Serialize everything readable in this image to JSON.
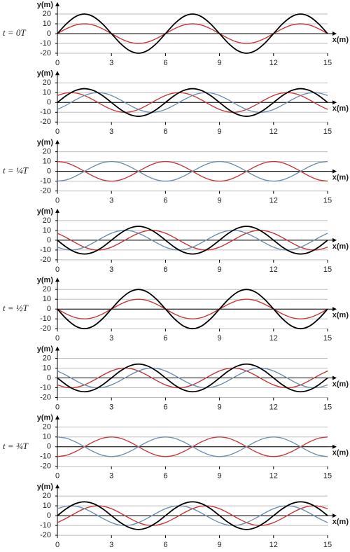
{
  "chart_data": [
    {
      "type": "line",
      "annotation": "t = 0T",
      "ylabel": "y(m)",
      "xlabel": "x(m)",
      "xlim": [
        0,
        15
      ],
      "ylim": [
        -20,
        20
      ],
      "xticks": [
        0,
        3,
        6,
        9,
        12,
        15
      ],
      "yticks": [
        -20,
        -10,
        0,
        10,
        20
      ],
      "grid": true,
      "x": [
        0,
        0.5,
        1,
        1.5,
        2,
        2.5,
        3,
        3.5,
        4,
        4.5,
        5,
        5.5,
        6,
        6.5,
        7,
        7.5,
        8,
        8.5,
        9,
        9.5,
        10,
        10.5,
        11,
        11.5,
        12,
        12.5,
        13,
        13.5,
        14,
        14.5,
        15
      ],
      "series": [
        {
          "color": "#c8383a",
          "values": [
            0,
            5,
            8.7,
            10,
            8.7,
            5,
            0,
            -5,
            -8.7,
            -10,
            -8.7,
            -5,
            0,
            5,
            8.7,
            10,
            8.7,
            5,
            0,
            -5,
            -8.7,
            -10,
            -8.7,
            -5,
            0,
            5,
            8.7,
            10,
            8.7,
            5,
            0
          ]
        },
        {
          "color": "#000000",
          "values": [
            0,
            10,
            17.3,
            20,
            17.3,
            10,
            0,
            -10,
            -17.3,
            -20,
            -17.3,
            -10,
            0,
            10,
            17.3,
            20,
            17.3,
            10,
            0,
            -10,
            -17.3,
            -20,
            -17.3,
            -10,
            0,
            10,
            17.3,
            20,
            17.3,
            10,
            0
          ]
        }
      ]
    },
    {
      "type": "line",
      "ylabel": "y(m)",
      "xlabel": "x(m)",
      "xlim": [
        0,
        15
      ],
      "ylim": [
        -20,
        20
      ],
      "xticks": [
        0,
        3,
        6,
        9,
        12,
        15
      ],
      "yticks": [
        -20,
        -10,
        0,
        10,
        20
      ],
      "grid": true,
      "x": [
        0,
        0.5,
        1,
        1.5,
        2,
        2.5,
        3,
        3.5,
        4,
        4.5,
        5,
        5.5,
        6,
        6.5,
        7,
        7.5,
        8,
        8.5,
        9,
        9.5,
        10,
        10.5,
        11,
        11.5,
        12,
        12.5,
        13,
        13.5,
        14,
        14.5,
        15
      ],
      "series": [
        {
          "color": "#c8383a",
          "values": [
            7.1,
            9.7,
            9.7,
            7.1,
            2.6,
            -2.6,
            -7.1,
            -9.7,
            -9.7,
            -7.1,
            -2.6,
            2.6,
            7.1,
            9.7,
            9.7,
            7.1,
            2.6,
            -2.6,
            -7.1,
            -9.7,
            -9.7,
            -7.1,
            -2.6,
            2.6,
            7.1,
            9.7,
            9.7,
            7.1,
            2.6,
            -2.6,
            -7.1
          ]
        },
        {
          "color": "#6f8fb0",
          "values": [
            -7.1,
            -2.6,
            2.6,
            7.1,
            9.7,
            9.7,
            7.1,
            2.6,
            -2.6,
            -7.1,
            -9.7,
            -9.7,
            -7.1,
            -2.6,
            2.6,
            7.1,
            9.7,
            9.7,
            7.1,
            2.6,
            -2.6,
            -7.1,
            -9.7,
            -9.7,
            -7.1,
            -2.6,
            2.6,
            7.1,
            9.7,
            9.7,
            7.1
          ]
        },
        {
          "color": "#000000",
          "values": [
            0,
            7.1,
            12.2,
            14.1,
            12.2,
            7.1,
            0,
            -7.1,
            -12.2,
            -14.1,
            -12.2,
            -7.1,
            0,
            7.1,
            12.2,
            14.1,
            12.2,
            7.1,
            0,
            -7.1,
            -12.2,
            -14.1,
            -12.2,
            -7.1,
            0,
            7.1,
            12.2,
            14.1,
            12.2,
            7.1,
            0
          ]
        }
      ]
    },
    {
      "type": "line",
      "annotation": "t = ¼T",
      "ylabel": "y(m)",
      "xlabel": "x(m)",
      "xlim": [
        0,
        15
      ],
      "ylim": [
        -20,
        20
      ],
      "xticks": [
        0,
        3,
        6,
        9,
        12,
        15
      ],
      "yticks": [
        -20,
        -10,
        0,
        10,
        20
      ],
      "grid": true,
      "x": [
        0,
        0.5,
        1,
        1.5,
        2,
        2.5,
        3,
        3.5,
        4,
        4.5,
        5,
        5.5,
        6,
        6.5,
        7,
        7.5,
        8,
        8.5,
        9,
        9.5,
        10,
        10.5,
        11,
        11.5,
        12,
        12.5,
        13,
        13.5,
        14,
        14.5,
        15
      ],
      "series": [
        {
          "color": "#c8383a",
          "values": [
            10,
            8.7,
            5,
            0,
            -5,
            -8.7,
            -10,
            -8.7,
            -5,
            0,
            5,
            8.7,
            10,
            8.7,
            5,
            0,
            -5,
            -8.7,
            -10,
            -8.7,
            -5,
            0,
            5,
            8.7,
            10,
            8.7,
            5,
            0,
            -5,
            -8.7,
            -10
          ]
        },
        {
          "color": "#6f8fb0",
          "values": [
            -10,
            -8.7,
            -5,
            0,
            5,
            8.7,
            10,
            8.7,
            5,
            0,
            -5,
            -8.7,
            -10,
            -8.7,
            -5,
            0,
            5,
            8.7,
            10,
            8.7,
            5,
            0,
            -5,
            -8.7,
            -10,
            -8.7,
            -5,
            0,
            5,
            8.7,
            10
          ]
        }
      ]
    },
    {
      "type": "line",
      "ylabel": "y(m)",
      "xlabel": "x(m)",
      "xlim": [
        0,
        15
      ],
      "ylim": [
        -20,
        20
      ],
      "xticks": [
        0,
        3,
        6,
        9,
        12,
        15
      ],
      "yticks": [
        -20,
        -10,
        0,
        10,
        20
      ],
      "grid": true,
      "x": [
        0,
        0.5,
        1,
        1.5,
        2,
        2.5,
        3,
        3.5,
        4,
        4.5,
        5,
        5.5,
        6,
        6.5,
        7,
        7.5,
        8,
        8.5,
        9,
        9.5,
        10,
        10.5,
        11,
        11.5,
        12,
        12.5,
        13,
        13.5,
        14,
        14.5,
        15
      ],
      "series": [
        {
          "color": "#c8383a",
          "values": [
            7.1,
            2.6,
            -2.6,
            -7.1,
            -9.7,
            -9.7,
            -7.1,
            -2.6,
            2.6,
            7.1,
            9.7,
            9.7,
            7.1,
            2.6,
            -2.6,
            -7.1,
            -9.7,
            -9.7,
            -7.1,
            -2.6,
            2.6,
            7.1,
            9.7,
            9.7,
            7.1,
            2.6,
            -2.6,
            -7.1,
            -9.7,
            -9.7,
            -7.1
          ]
        },
        {
          "color": "#6f8fb0",
          "values": [
            -7.1,
            -9.7,
            -9.7,
            -7.1,
            -2.6,
            2.6,
            7.1,
            9.7,
            9.7,
            7.1,
            2.6,
            -2.6,
            -7.1,
            -9.7,
            -9.7,
            -7.1,
            -2.6,
            2.6,
            7.1,
            9.7,
            9.7,
            7.1,
            2.6,
            -2.6,
            -7.1,
            -9.7,
            -9.7,
            -7.1,
            -2.6,
            2.6,
            7.1
          ]
        },
        {
          "color": "#000000",
          "values": [
            0,
            -7.1,
            -12.2,
            -14.1,
            -12.2,
            -7.1,
            0,
            7.1,
            12.2,
            14.1,
            12.2,
            7.1,
            0,
            -7.1,
            -12.2,
            -14.1,
            -12.2,
            -7.1,
            0,
            7.1,
            12.2,
            14.1,
            12.2,
            7.1,
            0,
            -7.1,
            -12.2,
            -14.1,
            -12.2,
            -7.1,
            0
          ]
        }
      ]
    },
    {
      "type": "line",
      "annotation": "t = ½T",
      "ylabel": "y(m)",
      "xlabel": "x(m)",
      "xlim": [
        0,
        15
      ],
      "ylim": [
        -20,
        20
      ],
      "xticks": [
        0,
        3,
        6,
        9,
        12,
        15
      ],
      "yticks": [
        -20,
        -10,
        0,
        10,
        20
      ],
      "grid": true,
      "x": [
        0,
        0.5,
        1,
        1.5,
        2,
        2.5,
        3,
        3.5,
        4,
        4.5,
        5,
        5.5,
        6,
        6.5,
        7,
        7.5,
        8,
        8.5,
        9,
        9.5,
        10,
        10.5,
        11,
        11.5,
        12,
        12.5,
        13,
        13.5,
        14,
        14.5,
        15
      ],
      "series": [
        {
          "color": "#c8383a",
          "values": [
            0,
            -5,
            -8.7,
            -10,
            -8.7,
            -5,
            0,
            5,
            8.7,
            10,
            8.7,
            5,
            0,
            -5,
            -8.7,
            -10,
            -8.7,
            -5,
            0,
            5,
            8.7,
            10,
            8.7,
            5,
            0,
            -5,
            -8.7,
            -10,
            -8.7,
            -5,
            0
          ]
        },
        {
          "color": "#000000",
          "values": [
            0,
            -10,
            -17.3,
            -20,
            -17.3,
            -10,
            0,
            10,
            17.3,
            20,
            17.3,
            10,
            0,
            -10,
            -17.3,
            -20,
            -17.3,
            -10,
            0,
            10,
            17.3,
            20,
            17.3,
            10,
            0,
            -10,
            -17.3,
            -20,
            -17.3,
            -10,
            0
          ]
        }
      ]
    },
    {
      "type": "line",
      "ylabel": "y(m)",
      "xlabel": "x(m)",
      "xlim": [
        0,
        15
      ],
      "ylim": [
        -20,
        20
      ],
      "xticks": [
        0,
        3,
        6,
        9,
        12,
        15
      ],
      "yticks": [
        -20,
        -10,
        0,
        10,
        20
      ],
      "grid": true,
      "x": [
        0,
        0.5,
        1,
        1.5,
        2,
        2.5,
        3,
        3.5,
        4,
        4.5,
        5,
        5.5,
        6,
        6.5,
        7,
        7.5,
        8,
        8.5,
        9,
        9.5,
        10,
        10.5,
        11,
        11.5,
        12,
        12.5,
        13,
        13.5,
        14,
        14.5,
        15
      ],
      "series": [
        {
          "color": "#c8383a",
          "values": [
            -7.1,
            -9.7,
            -9.7,
            -7.1,
            -2.6,
            2.6,
            7.1,
            9.7,
            9.7,
            7.1,
            2.6,
            -2.6,
            -7.1,
            -9.7,
            -9.7,
            -7.1,
            -2.6,
            2.6,
            7.1,
            9.7,
            9.7,
            7.1,
            2.6,
            -2.6,
            -7.1,
            -9.7,
            -9.7,
            -7.1,
            -2.6,
            2.6,
            7.1
          ]
        },
        {
          "color": "#6f8fb0",
          "values": [
            7.1,
            2.6,
            -2.6,
            -7.1,
            -9.7,
            -9.7,
            -7.1,
            -2.6,
            2.6,
            7.1,
            9.7,
            9.7,
            7.1,
            2.6,
            -2.6,
            -7.1,
            -9.7,
            -9.7,
            -7.1,
            -2.6,
            2.6,
            7.1,
            9.7,
            9.7,
            7.1,
            2.6,
            -2.6,
            -7.1,
            -9.7,
            -9.7,
            -7.1
          ]
        },
        {
          "color": "#000000",
          "values": [
            0,
            -7.1,
            -12.2,
            -14.1,
            -12.2,
            -7.1,
            0,
            7.1,
            12.2,
            14.1,
            12.2,
            7.1,
            0,
            -7.1,
            -12.2,
            -14.1,
            -12.2,
            -7.1,
            0,
            7.1,
            12.2,
            14.1,
            12.2,
            7.1,
            0,
            -7.1,
            -12.2,
            -14.1,
            -12.2,
            -7.1,
            0
          ]
        }
      ]
    },
    {
      "type": "line",
      "annotation": "t = ¾T",
      "ylabel": "y(m)",
      "xlabel": "x(m)",
      "xlim": [
        0,
        15
      ],
      "ylim": [
        -20,
        20
      ],
      "xticks": [
        0,
        3,
        6,
        9,
        12,
        15
      ],
      "yticks": [
        -20,
        -10,
        0,
        10,
        20
      ],
      "grid": true,
      "x": [
        0,
        0.5,
        1,
        1.5,
        2,
        2.5,
        3,
        3.5,
        4,
        4.5,
        5,
        5.5,
        6,
        6.5,
        7,
        7.5,
        8,
        8.5,
        9,
        9.5,
        10,
        10.5,
        11,
        11.5,
        12,
        12.5,
        13,
        13.5,
        14,
        14.5,
        15
      ],
      "series": [
        {
          "color": "#c8383a",
          "values": [
            -10,
            -8.7,
            -5,
            0,
            5,
            8.7,
            10,
            8.7,
            5,
            0,
            -5,
            -8.7,
            -10,
            -8.7,
            -5,
            0,
            5,
            8.7,
            10,
            8.7,
            5,
            0,
            -5,
            -8.7,
            -10,
            -8.7,
            -5,
            0,
            5,
            8.7,
            10
          ]
        },
        {
          "color": "#6f8fb0",
          "values": [
            10,
            8.7,
            5,
            0,
            -5,
            -8.7,
            -10,
            -8.7,
            -5,
            0,
            5,
            8.7,
            10,
            8.7,
            5,
            0,
            -5,
            -8.7,
            -10,
            -8.7,
            -5,
            0,
            5,
            8.7,
            10,
            8.7,
            5,
            0,
            -5,
            -8.7,
            -10
          ]
        }
      ]
    },
    {
      "type": "line",
      "ylabel": "y(m)",
      "xlabel": "x(m)",
      "xlim": [
        0,
        15
      ],
      "ylim": [
        -20,
        20
      ],
      "xticks": [
        0,
        3,
        6,
        9,
        12,
        15
      ],
      "yticks": [
        -20,
        -10,
        0,
        10,
        20
      ],
      "grid": true,
      "x": [
        0,
        0.5,
        1,
        1.5,
        2,
        2.5,
        3,
        3.5,
        4,
        4.5,
        5,
        5.5,
        6,
        6.5,
        7,
        7.5,
        8,
        8.5,
        9,
        9.5,
        10,
        10.5,
        11,
        11.5,
        12,
        12.5,
        13,
        13.5,
        14,
        14.5,
        15
      ],
      "series": [
        {
          "color": "#c8383a",
          "values": [
            -7.1,
            -2.6,
            2.6,
            7.1,
            9.7,
            9.7,
            7.1,
            2.6,
            -2.6,
            -7.1,
            -9.7,
            -9.7,
            -7.1,
            -2.6,
            2.6,
            7.1,
            9.7,
            9.7,
            7.1,
            2.6,
            -2.6,
            -7.1,
            -9.7,
            -9.7,
            -7.1,
            -2.6,
            2.6,
            7.1,
            9.7,
            9.7,
            7.1
          ]
        },
        {
          "color": "#6f8fb0",
          "values": [
            7.1,
            9.7,
            9.7,
            7.1,
            2.6,
            -2.6,
            -7.1,
            -9.7,
            -9.7,
            -7.1,
            -2.6,
            2.6,
            7.1,
            9.7,
            9.7,
            7.1,
            2.6,
            -2.6,
            -7.1,
            -9.7,
            -9.7,
            -7.1,
            -2.6,
            2.6,
            7.1,
            9.7,
            9.7,
            7.1,
            2.6,
            -2.6,
            -7.1
          ]
        },
        {
          "color": "#000000",
          "values": [
            0,
            7.1,
            12.2,
            14.1,
            12.2,
            7.1,
            0,
            -7.1,
            -12.2,
            -14.1,
            -12.2,
            -7.1,
            0,
            7.1,
            12.2,
            14.1,
            12.2,
            7.1,
            0,
            -7.1,
            -12.2,
            -14.1,
            -12.2,
            -7.1,
            0,
            7.1,
            12.2,
            14.1,
            12.2,
            7.1,
            0
          ]
        }
      ]
    }
  ]
}
